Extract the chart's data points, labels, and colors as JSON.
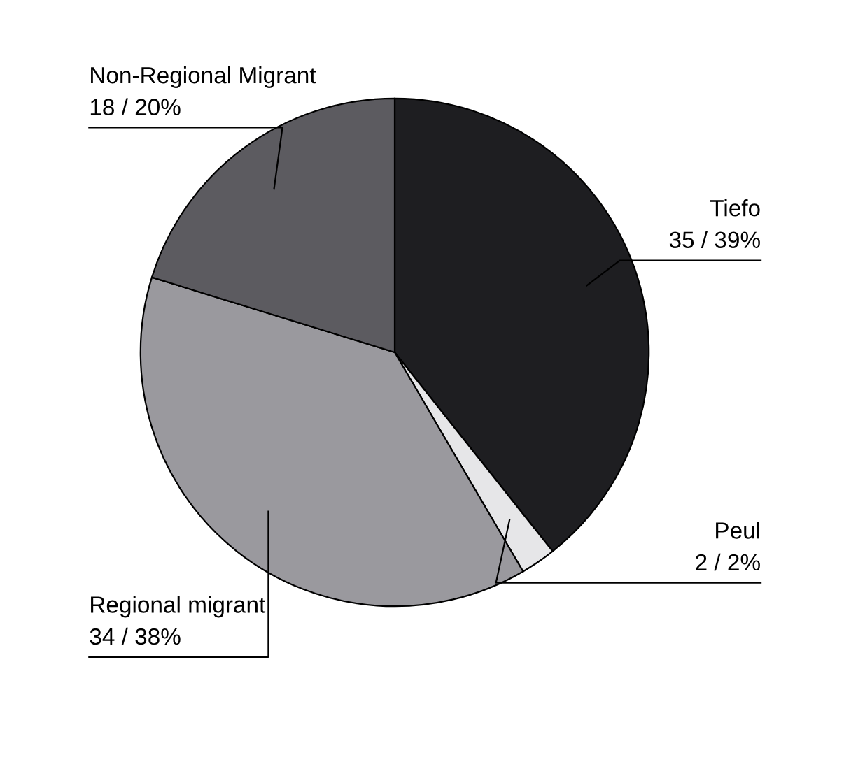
{
  "chart_data": {
    "type": "pie",
    "categories": [
      "Tiefo",
      "Peul",
      "Regional migrant",
      "Non-Regional Migrant"
    ],
    "values": [
      35,
      2,
      34,
      18
    ],
    "value_labels": [
      "35 / 39%",
      "2 / 2%",
      "34 / 38%",
      "18 / 20%"
    ],
    "colors": [
      "#1e1e21",
      "#e6e6e8",
      "#9a999e",
      "#5c5b60"
    ],
    "legend": false
  }
}
